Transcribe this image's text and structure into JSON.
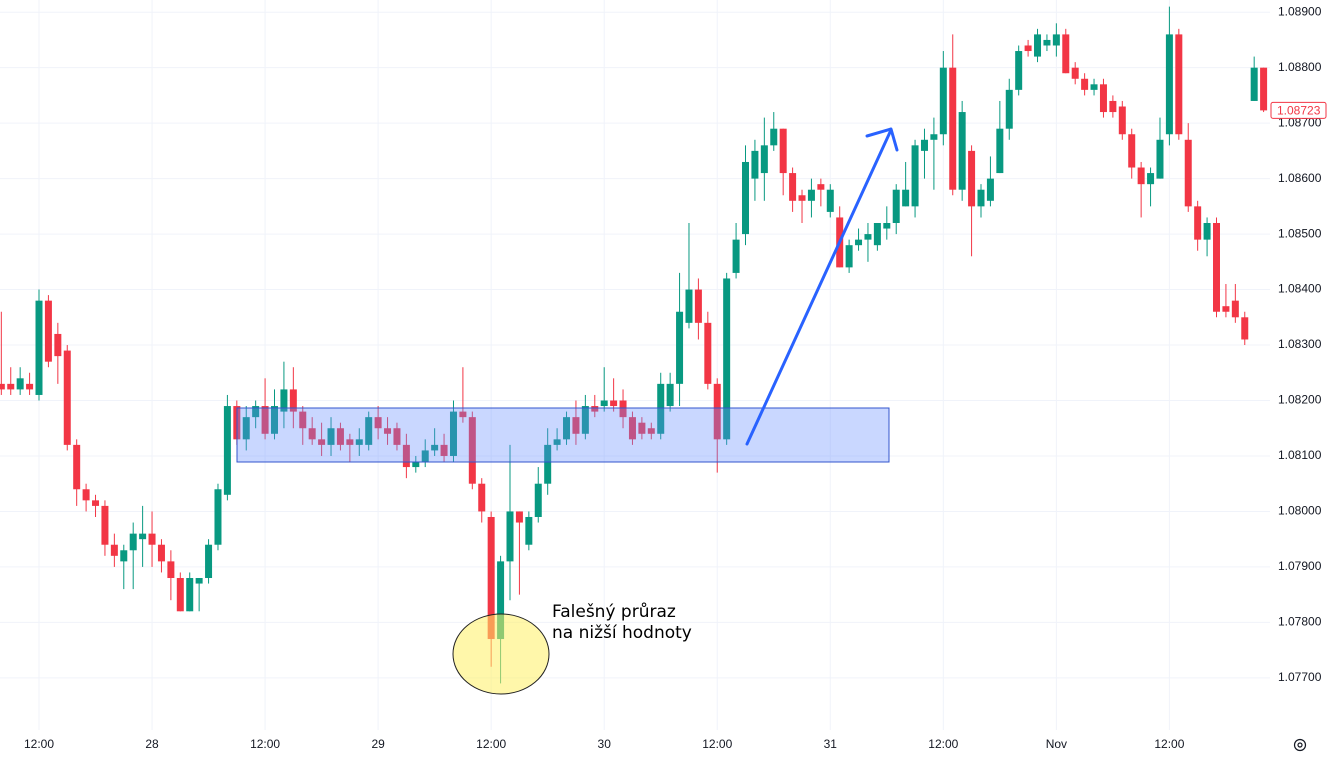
{
  "chart_data": {
    "type": "candlestick",
    "up_color": "#089981",
    "down_color": "#f23645",
    "grid": true,
    "categories": [
      null,
      null,
      null,
      null,
      "12:00",
      null,
      null,
      null,
      null,
      null,
      null,
      null,
      null,
      null,
      null,
      null,
      "28",
      null,
      null,
      null,
      null,
      null,
      null,
      null,
      null,
      null,
      null,
      null,
      "12:00",
      null,
      null,
      null,
      null,
      null,
      null,
      null,
      null,
      null,
      null,
      null,
      "29",
      null,
      null,
      null,
      null,
      null,
      null,
      null,
      null,
      null,
      null,
      null,
      "12:00",
      null,
      null,
      null,
      null,
      null,
      null,
      null,
      null,
      null,
      null,
      null,
      "30",
      null,
      null,
      null,
      null,
      null,
      null,
      null,
      null,
      null,
      null,
      null,
      "12:00",
      null,
      null,
      null,
      null,
      null,
      null,
      null,
      null,
      null,
      null,
      null,
      "31",
      null,
      null,
      null,
      null,
      null,
      null,
      null,
      null,
      null,
      null,
      null,
      "12:00",
      null,
      null,
      null,
      null,
      null,
      null,
      null,
      null,
      null,
      null,
      null,
      "Nov",
      null,
      null,
      null,
      null,
      null,
      null,
      null,
      null,
      null,
      null,
      null,
      "12:00",
      null,
      null,
      null,
      null,
      null,
      null,
      null,
      null,
      null,
      null
    ],
    "open": [
      1.0823,
      1.0823,
      1.0822,
      1.0823,
      1.0821,
      1.0838,
      1.0832,
      1.0829,
      1.0812,
      1.0804,
      1.0802,
      1.0801,
      1.0794,
      1.0791,
      1.0793,
      1.0795,
      1.0796,
      1.0794,
      1.0791,
      1.0788,
      1.0782,
      1.0787,
      1.0788,
      1.0794,
      1.0803,
      1.0819,
      1.0813,
      1.0817,
      1.0819,
      1.0814,
      1.0818,
      1.0822,
      1.0818,
      1.0815,
      1.0813,
      1.0812,
      1.0815,
      1.0813,
      1.0812,
      1.0812,
      1.0817,
      1.0815,
      1.0815,
      1.0812,
      1.0808,
      1.0809,
      1.0811,
      1.0812,
      1.081,
      1.0818,
      1.0817,
      1.0805,
      1.0799,
      1.0777,
      1.0791,
      1.08,
      1.0794,
      1.0799,
      1.0805,
      1.0812,
      1.0813,
      1.0817,
      1.0814,
      1.0819,
      1.0819,
      1.082,
      1.082,
      1.0817,
      1.0816,
      1.0815,
      1.0814,
      1.0819,
      1.0823,
      1.0834,
      1.084,
      1.0834,
      1.0823,
      1.0813,
      1.0843,
      1.085,
      1.086,
      1.0861,
      1.0866,
      1.0869,
      1.0861,
      1.0857,
      1.0856,
      1.0859,
      1.0854,
      1.0853,
      1.0844,
      1.0848,
      1.0849,
      1.0848,
      1.0851,
      1.0852,
      1.0855,
      1.0855,
      1.0865,
      1.0867,
      1.0868,
      1.088,
      1.0858,
      1.0865,
      1.0855,
      1.0856,
      1.0861,
      1.0869,
      1.0876,
      1.0884,
      1.0882,
      1.0884,
      1.0884,
      1.0886,
      1.088,
      1.0878,
      1.0876,
      1.0877,
      1.0874,
      1.0873,
      1.0868,
      1.0862,
      1.0859,
      1.086,
      1.0868,
      1.0886,
      1.0867,
      1.0855,
      1.0849,
      1.0852,
      1.0837,
      1.0838,
      1.0835,
      1.0874,
      1.088
    ],
    "high": [
      1.0836,
      1.0826,
      1.0826,
      1.0825,
      1.084,
      1.0839,
      1.0834,
      1.083,
      1.0813,
      1.0805,
      1.0803,
      1.0802,
      1.0796,
      1.0794,
      1.0798,
      1.0801,
      1.08,
      1.0795,
      1.0793,
      1.0789,
      1.0789,
      1.0788,
      1.0795,
      1.0805,
      1.0821,
      1.082,
      1.0819,
      1.082,
      1.0824,
      1.0822,
      1.0827,
      1.0826,
      1.0819,
      1.0817,
      1.0816,
      1.0817,
      1.0816,
      1.0814,
      1.0815,
      1.0818,
      1.0819,
      1.0817,
      1.0816,
      1.0814,
      1.081,
      1.0813,
      1.0815,
      1.0814,
      1.082,
      1.0826,
      1.0818,
      1.0806,
      1.08,
      1.0792,
      1.0812,
      1.08,
      1.08,
      1.0808,
      1.0815,
      1.0815,
      1.0818,
      1.082,
      1.0821,
      1.0821,
      1.0826,
      1.0824,
      1.0822,
      1.0818,
      1.0817,
      1.0816,
      1.0825,
      1.0825,
      1.0843,
      1.0852,
      1.0842,
      1.0836,
      1.0824,
      1.0843,
      1.0852,
      1.0866,
      1.0867,
      1.0871,
      1.0872,
      1.0869,
      1.0862,
      1.0858,
      1.086,
      1.086,
      1.0859,
      1.0855,
      1.0849,
      1.0851,
      1.0852,
      1.0852,
      1.0855,
      1.0859,
      1.0863,
      1.0867,
      1.0869,
      1.0871,
      1.0883,
      1.0886,
      1.0874,
      1.0866,
      1.0859,
      1.0864,
      1.0874,
      1.0878,
      1.0884,
      1.0885,
      1.0887,
      1.0886,
      1.0888,
      1.0887,
      1.0881,
      1.0879,
      1.0878,
      1.0878,
      1.0875,
      1.0874,
      1.0869,
      1.0863,
      1.0862,
      1.0871,
      1.0891,
      1.0887,
      1.087,
      1.0856,
      1.0853,
      1.0853,
      1.0841,
      1.0841,
      1.0836,
      1.0882,
      1.088
    ],
    "low": [
      1.0821,
      1.0821,
      1.0821,
      1.0821,
      1.082,
      1.0826,
      1.0823,
      1.0811,
      1.0801,
      1.08,
      1.0799,
      1.0792,
      1.079,
      1.0786,
      1.0786,
      1.079,
      1.079,
      1.0789,
      1.0784,
      1.0782,
      1.0782,
      1.0782,
      1.0787,
      1.0793,
      1.0802,
      1.0812,
      1.0811,
      1.0815,
      1.0813,
      1.0813,
      1.0815,
      1.0815,
      1.0812,
      1.0812,
      1.081,
      1.081,
      1.0811,
      1.0809,
      1.081,
      1.0811,
      1.0813,
      1.0812,
      1.0811,
      1.0806,
      1.0807,
      1.0808,
      1.081,
      1.0809,
      1.0809,
      1.0816,
      1.0804,
      1.0798,
      1.0772,
      1.0769,
      1.0784,
      1.0785,
      1.0793,
      1.0798,
      1.0803,
      1.0811,
      1.0812,
      1.0812,
      1.0813,
      1.0817,
      1.0818,
      1.0818,
      1.0815,
      1.0812,
      1.0813,
      1.0813,
      1.0813,
      1.0818,
      1.0819,
      1.0833,
      1.0831,
      1.0822,
      1.0807,
      1.0812,
      1.0842,
      1.0848,
      1.0856,
      1.0856,
      1.0865,
      1.0857,
      1.0854,
      1.0852,
      1.0853,
      1.0855,
      1.0853,
      1.0844,
      1.0843,
      1.0847,
      1.0845,
      1.0847,
      1.0849,
      1.085,
      1.0855,
      1.0853,
      1.086,
      1.0858,
      1.0866,
      1.0857,
      1.0856,
      1.0846,
      1.0853,
      1.0855,
      1.0861,
      1.0867,
      1.0875,
      1.0882,
      1.0881,
      1.0883,
      1.0882,
      1.0879,
      1.0877,
      1.0875,
      1.0875,
      1.0871,
      1.0871,
      1.0867,
      1.086,
      1.0853,
      1.0855,
      1.086,
      1.0866,
      1.0867,
      1.0854,
      1.0847,
      1.0846,
      1.0835,
      1.0835,
      1.0834,
      1.083,
      1.0874,
      1.0872
    ],
    "close": [
      1.0822,
      1.0822,
      1.0824,
      1.0822,
      1.0838,
      1.0827,
      1.0828,
      1.0812,
      1.0804,
      1.0802,
      1.0801,
      1.0794,
      1.0792,
      1.0793,
      1.0796,
      1.0796,
      1.0794,
      1.0791,
      1.0788,
      1.0782,
      1.0788,
      1.0788,
      1.0794,
      1.0804,
      1.0819,
      1.0813,
      1.0817,
      1.0819,
      1.0814,
      1.0819,
      1.0822,
      1.0818,
      1.0815,
      1.0813,
      1.0812,
      1.0815,
      1.0812,
      1.0812,
      1.0813,
      1.0817,
      1.0815,
      1.0814,
      1.0812,
      1.0808,
      1.0809,
      1.0811,
      1.0812,
      1.081,
      1.0818,
      1.0817,
      1.0805,
      1.08,
      1.0777,
      1.0791,
      1.08,
      1.0798,
      1.0799,
      1.0805,
      1.0812,
      1.0813,
      1.0817,
      1.0814,
      1.0819,
      1.0818,
      1.082,
      1.0819,
      1.0817,
      1.0813,
      1.0814,
      1.0814,
      1.0823,
      1.0823,
      1.0836,
      1.084,
      1.0834,
      1.0823,
      1.0813,
      1.0842,
      1.0849,
      1.0863,
      1.0865,
      1.0866,
      1.0869,
      1.0861,
      1.0856,
      1.0856,
      1.0858,
      1.0858,
      1.0858,
      1.0844,
      1.0848,
      1.0849,
      1.085,
      1.0852,
      1.0852,
      1.0858,
      1.0858,
      1.0866,
      1.0867,
      1.0868,
      1.088,
      1.0858,
      1.0872,
      1.0855,
      1.0858,
      1.086,
      1.0869,
      1.0876,
      1.0883,
      1.0883,
      1.0886,
      1.0885,
      1.0886,
      1.0879,
      1.0878,
      1.0876,
      1.0877,
      1.0872,
      1.0872,
      1.0868,
      1.0862,
      1.0859,
      1.0861,
      1.0867,
      1.0886,
      1.0868,
      1.0855,
      1.0849,
      1.0852,
      1.0836,
      1.0836,
      1.0835,
      1.0831,
      1.088,
      1.08723
    ],
    "ylim": [
      1.07606,
      1.08922
    ],
    "yticks": [
      {
        "value": 1.077,
        "label": "1.07700"
      },
      {
        "value": 1.078,
        "label": "1.07800"
      },
      {
        "value": 1.079,
        "label": "1.07900"
      },
      {
        "value": 1.08,
        "label": "1.08000"
      },
      {
        "value": 1.081,
        "label": "1.08100"
      },
      {
        "value": 1.082,
        "label": "1.08200"
      },
      {
        "value": 1.083,
        "label": "1.08300"
      },
      {
        "value": 1.084,
        "label": "1.08400"
      },
      {
        "value": 1.085,
        "label": "1.08500"
      },
      {
        "value": 1.086,
        "label": "1.08600"
      },
      {
        "value": 1.087,
        "label": "1.08700"
      },
      {
        "value": 1.088,
        "label": "1.08800"
      },
      {
        "value": 1.089,
        "label": "1.08900"
      }
    ],
    "last_price": 1.08723,
    "annotation": [
      "Falešný průraz",
      "na nižší hodnoty"
    ]
  }
}
